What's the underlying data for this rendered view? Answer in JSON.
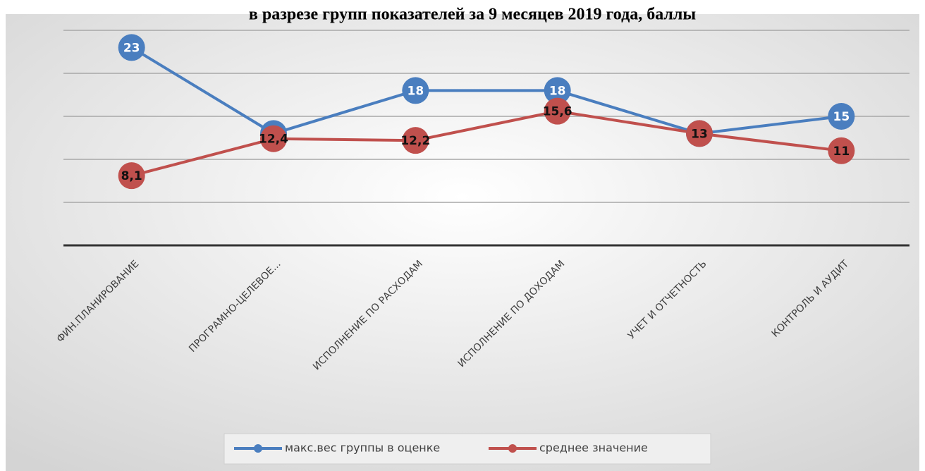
{
  "chart_data": {
    "type": "line",
    "title": "в разрезе групп показателей за 9 месяцев 2019 года, баллы",
    "categories": [
      "ФИН.ПЛАНИРОВАНИЕ",
      "ПРОГРАМНО-ЦЕЛЕВОЕ...",
      "ИСПОЛНЕНИЕ ПО РАСХОДАМ",
      "ИСПОЛНЕНИЕ ПО ДОХОДАМ",
      "УЧЕТ И ОТЧЕТНОСТЬ",
      "КОНТРОЛЬ И АУДИТ"
    ],
    "series": [
      {
        "name": "макс.вес группы в оценке",
        "color": "#4a7ebf",
        "values": [
          23,
          13,
          18,
          18,
          13,
          15
        ]
      },
      {
        "name": "среднее значение",
        "color": "#c0504d",
        "values": [
          8.1,
          12.4,
          12.2,
          15.6,
          13,
          11
        ],
        "value_labels": [
          "8,1",
          "12,4",
          "12,2",
          "15,6",
          "13",
          "11"
        ]
      }
    ],
    "ylim": [
      0,
      25
    ],
    "yticks": [
      0,
      5,
      10,
      15,
      20,
      25
    ],
    "grid": true,
    "legend": "bottom"
  }
}
